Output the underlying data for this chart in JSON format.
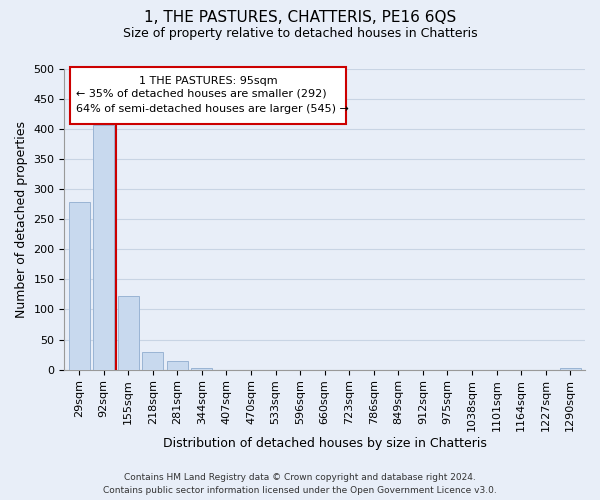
{
  "title": "1, THE PASTURES, CHATTERIS, PE16 6QS",
  "subtitle": "Size of property relative to detached houses in Chatteris",
  "bar_labels": [
    "29sqm",
    "92sqm",
    "155sqm",
    "218sqm",
    "281sqm",
    "344sqm",
    "407sqm",
    "470sqm",
    "533sqm",
    "596sqm",
    "660sqm",
    "723sqm",
    "786sqm",
    "849sqm",
    "912sqm",
    "975sqm",
    "1038sqm",
    "1101sqm",
    "1164sqm",
    "1227sqm",
    "1290sqm"
  ],
  "bar_values": [
    278,
    407,
    122,
    29,
    15,
    3,
    0,
    0,
    0,
    0,
    0,
    0,
    0,
    0,
    0,
    0,
    0,
    0,
    0,
    0,
    3
  ],
  "bar_color": "#c8d9ee",
  "bar_edge_color": "#9ab4d4",
  "xlabel": "Distribution of detached houses by size in Chatteris",
  "ylabel": "Number of detached properties",
  "ylim": [
    0,
    500
  ],
  "yticks": [
    0,
    50,
    100,
    150,
    200,
    250,
    300,
    350,
    400,
    450,
    500
  ],
  "vline_x": 1.5,
  "vline_color": "#cc0000",
  "annotation_line1": "1 THE PASTURES: 95sqm",
  "annotation_line2": "← 35% of detached houses are smaller (292)",
  "annotation_line3": "64% of semi-detached houses are larger (545) →",
  "footer_line1": "Contains HM Land Registry data © Crown copyright and database right 2024.",
  "footer_line2": "Contains public sector information licensed under the Open Government Licence v3.0.",
  "grid_color": "#c8d4e4",
  "background_color": "#e8eef8",
  "title_fontsize": 11,
  "subtitle_fontsize": 9,
  "tick_fontsize": 8,
  "ylabel_fontsize": 9,
  "xlabel_fontsize": 9
}
